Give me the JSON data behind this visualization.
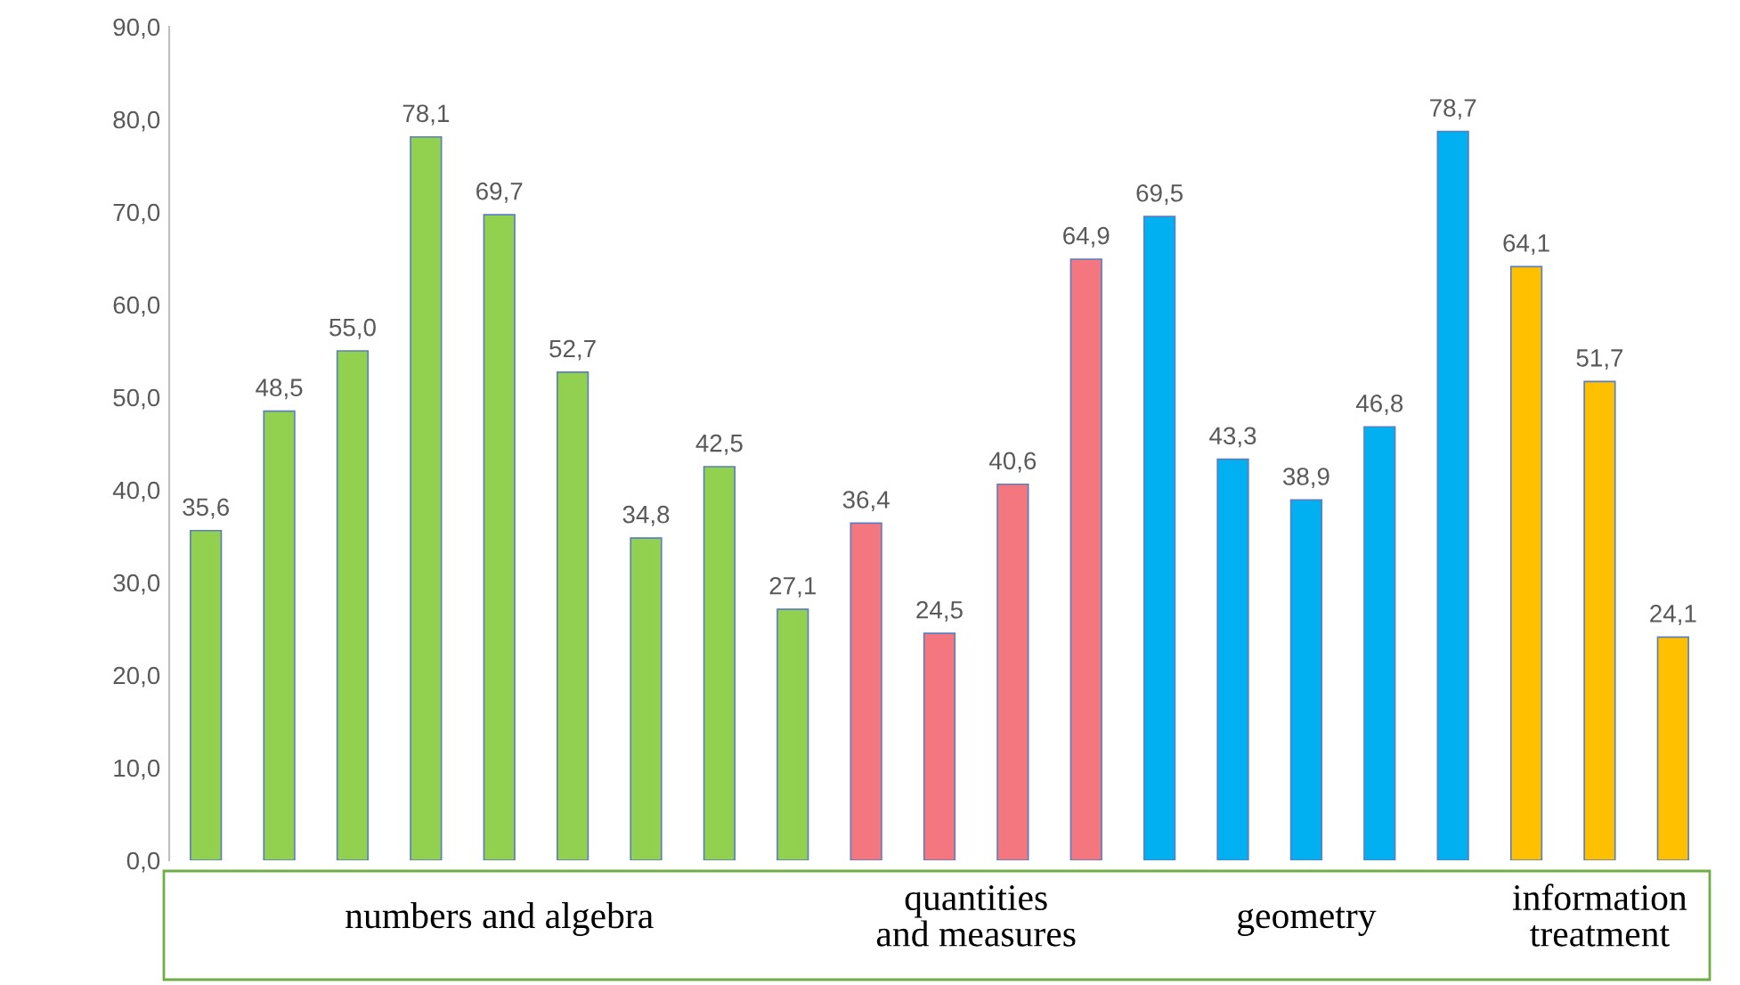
{
  "chart_data": {
    "type": "bar",
    "categories": [
      null,
      null,
      null,
      null,
      null,
      null,
      null,
      null,
      null,
      null,
      null,
      null,
      null,
      null,
      null,
      null,
      null,
      null,
      null,
      null,
      null
    ],
    "values": [
      35.6,
      48.5,
      55.0,
      78.1,
      69.7,
      52.7,
      34.8,
      42.5,
      27.1,
      36.4,
      24.5,
      40.6,
      64.9,
      69.5,
      43.3,
      38.9,
      46.8,
      78.7,
      64.1,
      51.7,
      24.1
    ],
    "value_labels": [
      "35,6",
      "48,5",
      "55,0",
      "78,1",
      "69,7",
      "52,7",
      "34,8",
      "42,5",
      "27,1",
      "36,4",
      "24,5",
      "40,6",
      "64,9",
      "69,5",
      "43,3",
      "38,9",
      "46,8",
      "78,7",
      "64,1",
      "51,7",
      "24,1"
    ],
    "colors": [
      "#92d050",
      "#92d050",
      "#92d050",
      "#92d050",
      "#92d050",
      "#92d050",
      "#92d050",
      "#92d050",
      "#92d050",
      "#f4777f",
      "#f4777f",
      "#f4777f",
      "#f4777f",
      "#00b0f0",
      "#00b0f0",
      "#00b0f0",
      "#00b0f0",
      "#00b0f0",
      "#ffc000",
      "#ffc000",
      "#ffc000"
    ],
    "ylim": [
      0,
      90
    ],
    "yticks": [
      {
        "value": 0,
        "label": "0,0"
      },
      {
        "value": 10,
        "label": "10,0"
      },
      {
        "value": 20,
        "label": "20,0"
      },
      {
        "value": 30,
        "label": "30,0"
      },
      {
        "value": 40,
        "label": "40,0"
      },
      {
        "value": 50,
        "label": "50,0"
      },
      {
        "value": 60,
        "label": "60,0"
      },
      {
        "value": 70,
        "label": "70,0"
      },
      {
        "value": 80,
        "label": "80,0"
      },
      {
        "value": 90,
        "label": "90,0"
      }
    ],
    "annotations": [
      "numbers and algebra",
      "quantities\nand measures",
      "geometry",
      "information\ntreatment"
    ],
    "grid": false
  }
}
